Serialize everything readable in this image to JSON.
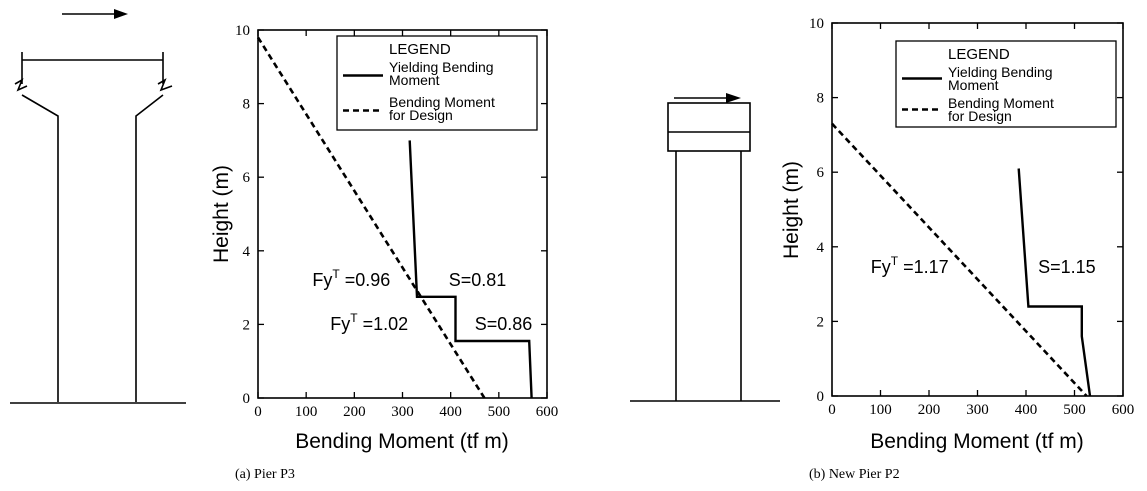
{
  "chart_data": [
    {
      "type": "line",
      "caption": "(a) Pier P3",
      "xlabel": "Bending Moment (tf m)",
      "ylabel": "Height (m)",
      "xlim": [
        0,
        600
      ],
      "ylim": [
        0,
        10
      ],
      "xticks": [
        0,
        100,
        200,
        300,
        400,
        500,
        600
      ],
      "yticks": [
        0,
        2,
        4,
        6,
        8,
        10
      ],
      "legend": {
        "title": "LEGEND",
        "position": "top-right",
        "entries": [
          {
            "style": "solid",
            "label_lines": [
              "Yielding Bending",
              "Moment"
            ]
          },
          {
            "style": "dashed",
            "label_lines": [
              "Bending Moment",
              "for Design"
            ]
          }
        ]
      },
      "series": [
        {
          "style": "solid",
          "x": [
            315,
            330,
            330,
            410,
            410,
            563,
            568
          ],
          "y": [
            7.0,
            2.75,
            2.75,
            2.75,
            1.55,
            1.55,
            0.0
          ]
        },
        {
          "style": "dashed",
          "x": [
            0,
            470
          ],
          "y": [
            9.8,
            0.0
          ]
        }
      ],
      "annotations": [
        {
          "prefix": "Fy",
          "sup": "T",
          "text": " =0.96",
          "x": 113,
          "y": 3.05
        },
        {
          "text": "S=0.81",
          "x": 396,
          "y": 3.05
        },
        {
          "prefix": "Fy",
          "sup": "T",
          "text": " =1.02",
          "x": 150,
          "y": 1.85
        },
        {
          "text": "S=0.86",
          "x": 450,
          "y": 1.85
        }
      ]
    },
    {
      "type": "line",
      "caption": "(b) New Pier P2",
      "xlabel": "Bending Moment (tf m)",
      "ylabel": "Height (m)",
      "xlim": [
        0,
        600
      ],
      "ylim": [
        0,
        10
      ],
      "xticks": [
        0,
        100,
        200,
        300,
        400,
        500,
        600
      ],
      "yticks": [
        0,
        2,
        4,
        6,
        8,
        10
      ],
      "legend": {
        "title": "LEGEND",
        "position": "top-right",
        "entries": [
          {
            "style": "solid",
            "label_lines": [
              "Yielding Bending",
              "Moment"
            ]
          },
          {
            "style": "dashed",
            "label_lines": [
              "Bending Moment",
              "for Design"
            ]
          }
        ]
      },
      "series": [
        {
          "style": "solid",
          "x": [
            385,
            405,
            405,
            515,
            515,
            532
          ],
          "y": [
            6.1,
            2.4,
            2.4,
            2.4,
            1.6,
            0.0
          ]
        },
        {
          "style": "dashed",
          "x": [
            0,
            525
          ],
          "y": [
            7.3,
            0.0
          ]
        }
      ],
      "annotations": [
        {
          "prefix": "Fy",
          "sup": "T",
          "text": " =1.17",
          "x": 80,
          "y": 3.3
        },
        {
          "text": "S=1.15",
          "x": 425,
          "y": 3.3
        }
      ]
    }
  ]
}
